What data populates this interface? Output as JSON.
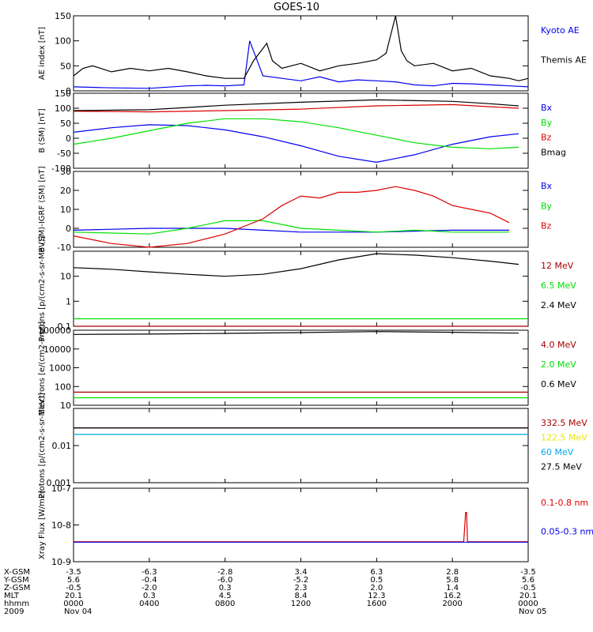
{
  "title": "GOES-10",
  "colors": {
    "black": "#000000",
    "blue": "#0000ee",
    "green": "#00e000",
    "red": "#dd0000",
    "darkred": "#aa0000",
    "yellow": "#e8e800",
    "cyan": "#00a8f0"
  },
  "x_ticks": [
    "0000",
    "0400",
    "0800",
    "1200",
    "1600",
    "2000",
    "0000"
  ],
  "footer": {
    "rows": [
      {
        "label": "X-GSM",
        "values": [
          "-3.5",
          "-6.3",
          "-2.8",
          "3.4",
          "6.3",
          "2.8",
          "-3.5"
        ]
      },
      {
        "label": "Y-GSM",
        "values": [
          "5.6",
          "-0.4",
          "-6.0",
          "-5.2",
          "0.5",
          "5.8",
          "5.6"
        ]
      },
      {
        "label": "Z-GSM",
        "values": [
          "-0.5",
          "-2.0",
          "0.3",
          "2.3",
          "2.0",
          "1.4",
          "-0.5"
        ]
      },
      {
        "label": "MLT",
        "values": [
          "20.1",
          "0.3",
          "4.5",
          "8.4",
          "12.3",
          "16.2",
          "20.1"
        ]
      },
      {
        "label": "hhmm",
        "values": [
          "0000",
          "0400",
          "0800",
          "1200",
          "1600",
          "2000",
          "0000"
        ]
      }
    ],
    "year": "2009",
    "start_date": "Nov 04",
    "end_date": "Nov 05"
  },
  "chart_data": [
    {
      "type": "line",
      "ylabel": "AE index [nT]",
      "ylim": [
        0,
        150
      ],
      "yticks": [
        0,
        50,
        100,
        150
      ],
      "series": [
        {
          "name": "Kyoto AE",
          "color": "blue",
          "x": [
            0,
            2,
            4,
            6,
            7,
            8,
            9,
            9.3,
            10,
            11,
            12,
            13,
            14,
            15,
            16,
            17,
            18,
            19,
            20,
            21,
            22,
            23,
            24
          ],
          "y": [
            8,
            6,
            5,
            10,
            11,
            10,
            12,
            100,
            30,
            25,
            20,
            28,
            18,
            22,
            20,
            18,
            12,
            10,
            15,
            14,
            12,
            10,
            8
          ]
        },
        {
          "name": "Themis AE",
          "color": "black",
          "x": [
            0,
            0.5,
            1,
            2,
            3,
            4,
            5,
            6,
            7,
            8,
            9,
            9.5,
            10,
            10.2,
            10.5,
            11,
            12,
            13,
            14,
            15,
            16,
            16.5,
            17,
            17.3,
            17.6,
            18,
            19,
            20,
            21,
            22,
            23,
            23.5,
            24
          ],
          "y": [
            30,
            45,
            50,
            38,
            45,
            40,
            45,
            38,
            30,
            25,
            25,
            60,
            85,
            95,
            60,
            45,
            55,
            40,
            50,
            55,
            62,
            75,
            150,
            80,
            60,
            50,
            55,
            40,
            45,
            30,
            25,
            20,
            25
          ]
        }
      ]
    },
    {
      "type": "line",
      "ylabel": "B (SM) [nT]",
      "ylim": [
        -100,
        150
      ],
      "yticks": [
        -100,
        -50,
        0,
        50,
        100,
        150
      ],
      "series": [
        {
          "name": "Bx",
          "color": "blue",
          "x": [
            0,
            2,
            4,
            6,
            8,
            10,
            12,
            14,
            16,
            18,
            20,
            22,
            23.5
          ],
          "y": [
            20,
            35,
            45,
            42,
            28,
            5,
            -25,
            -60,
            -80,
            -55,
            -20,
            5,
            15
          ]
        },
        {
          "name": "By",
          "color": "green",
          "x": [
            0,
            2,
            4,
            6,
            8,
            10,
            12,
            14,
            16,
            18,
            20,
            22,
            23.5
          ],
          "y": [
            -20,
            0,
            25,
            50,
            65,
            65,
            55,
            35,
            10,
            -15,
            -30,
            -35,
            -30
          ]
        },
        {
          "name": "Bz",
          "color": "red",
          "x": [
            0,
            4,
            8,
            12,
            16,
            20,
            22,
            23.5
          ],
          "y": [
            90,
            88,
            92,
            97,
            108,
            112,
            105,
            100
          ]
        },
        {
          "name": "Bmag",
          "color": "black",
          "x": [
            0,
            4,
            8,
            12,
            16,
            20,
            22,
            23.5
          ],
          "y": [
            92,
            95,
            110,
            120,
            128,
            123,
            115,
            108
          ]
        }
      ]
    },
    {
      "type": "line",
      "ylabel": "B (SM)-IGRF (SM) [nT]",
      "ylim": [
        -10,
        30
      ],
      "yticks": [
        -10,
        0,
        10,
        20,
        30
      ],
      "series": [
        {
          "name": "Bx",
          "color": "blue",
          "x": [
            0,
            4,
            8,
            10,
            12,
            16,
            20,
            23
          ],
          "y": [
            -1,
            0,
            0,
            -1,
            -2,
            -2,
            -1,
            -1
          ]
        },
        {
          "name": "By",
          "color": "green",
          "x": [
            0,
            4,
            6,
            8,
            10,
            12,
            14,
            16,
            18,
            20,
            23
          ],
          "y": [
            -2,
            -3,
            0,
            4,
            4,
            0,
            -1,
            -2,
            -1,
            -2,
            -2
          ]
        },
        {
          "name": "Bz",
          "color": "red",
          "x": [
            0,
            2,
            4,
            6,
            8,
            10,
            11,
            12,
            13,
            14,
            15,
            16,
            17,
            18,
            19,
            20,
            21,
            22,
            23
          ],
          "y": [
            -4,
            -8,
            -10,
            -8,
            -3,
            5,
            12,
            17,
            16,
            19,
            19,
            20,
            22,
            20,
            17,
            12,
            10,
            8,
            3
          ]
        }
      ]
    },
    {
      "type": "line",
      "ylabel": "Protons [p/(cm2-s-sr-MeV)]",
      "scale": "log",
      "ylim": [
        0.1,
        100
      ],
      "yticks": [
        0.1,
        1.0,
        10.0
      ],
      "series": [
        {
          "name": "12 MeV",
          "color": "darkred",
          "x": [
            0,
            24
          ],
          "y": [
            0.1,
            0.1
          ]
        },
        {
          "name": "6.5 MeV",
          "color": "green",
          "x": [
            0,
            24
          ],
          "y": [
            0.2,
            0.2
          ]
        },
        {
          "name": "2.4 MeV",
          "color": "black",
          "x": [
            0,
            2,
            4,
            6,
            8,
            10,
            12,
            14,
            16,
            18,
            20,
            22,
            23.5
          ],
          "y": [
            22,
            19,
            15,
            12,
            10,
            12,
            20,
            45,
            80,
            70,
            55,
            40,
            30
          ]
        }
      ]
    },
    {
      "type": "line",
      "ylabel": "Electrons [e/(cm2-s-sr)]",
      "scale": "log",
      "ylim": [
        10,
        100000
      ],
      "yticks": [
        10,
        100,
        1000,
        10000,
        100000
      ],
      "series": [
        {
          "name": "4.0 MeV",
          "color": "darkred",
          "x": [
            0,
            24
          ],
          "y": [
            50,
            50
          ]
        },
        {
          "name": "2.0 MeV",
          "color": "green",
          "x": [
            0,
            24
          ],
          "y": [
            25,
            25
          ]
        },
        {
          "name": "0.6 MeV",
          "color": "black",
          "x": [
            0,
            4,
            8,
            12,
            16,
            20,
            23.5
          ],
          "y": [
            60000,
            62000,
            68000,
            75000,
            85000,
            78000,
            70000
          ]
        }
      ]
    },
    {
      "type": "line",
      "ylabel": "Protons [p/(cm2-s-sr-MeV)]",
      "scale": "log",
      "ylim": [
        0.001,
        0.1
      ],
      "yticks": [
        0.001,
        0.01
      ],
      "series": [
        {
          "name": "332.5 MeV",
          "color": "darkred",
          "x": [
            0,
            24
          ],
          "y": [
            0.03,
            0.03
          ]
        },
        {
          "name": "122.5 MeV",
          "color": "yellow",
          "x": [
            0,
            24
          ],
          "y": [
            0.02,
            0.02
          ]
        },
        {
          "name": "60 MeV",
          "color": "cyan",
          "x": [
            0,
            24
          ],
          "y": [
            0.02,
            0.02
          ]
        },
        {
          "name": "27.5 MeV",
          "color": "black",
          "x": [
            0,
            24
          ],
          "y": [
            0.03,
            0.03
          ]
        }
      ]
    },
    {
      "type": "line",
      "ylabel": "Xray Flux [W/m2]",
      "scale": "log",
      "ylim": [
        1e-09,
        1e-07
      ],
      "ytick_labels": [
        "10-7",
        "10-8",
        "10-9"
      ],
      "series": [
        {
          "name": "0.1-0.8 nm",
          "color": "red",
          "x": [
            0,
            20.6,
            20.7,
            20.75,
            20.8,
            24
          ],
          "y": [
            3.5e-09,
            3.5e-09,
            2.2e-08,
            2.2e-08,
            3.5e-09,
            3.5e-09
          ]
        },
        {
          "name": "0.05-0.3 nm",
          "color": "blue",
          "x": [
            0,
            24
          ],
          "y": [
            3.4e-09,
            3.4e-09
          ]
        }
      ]
    }
  ]
}
